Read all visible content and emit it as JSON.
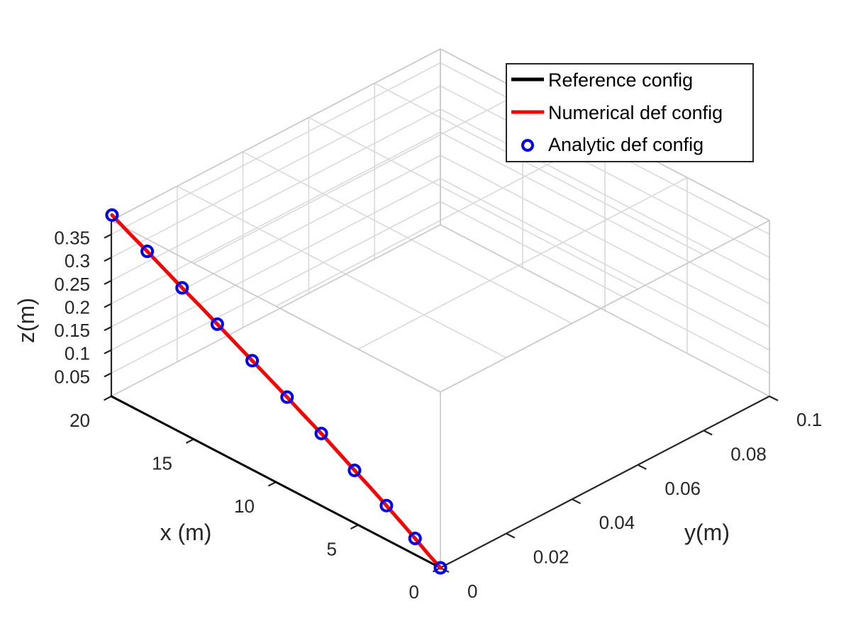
{
  "chart_data": {
    "type": "line",
    "projection": "3d",
    "title": "",
    "xlabel": "x (m)",
    "ylabel": "y(m)",
    "zlabel": "z(m)",
    "xlim": [
      0,
      20
    ],
    "ylim": [
      0,
      0.1
    ],
    "zlim": [
      0,
      0.38
    ],
    "x_ticks": [
      0,
      5,
      10,
      15,
      20
    ],
    "x_tick_labels": [
      "0",
      "5",
      "10",
      "15",
      "20"
    ],
    "y_ticks": [
      0,
      0.02,
      0.04,
      0.06,
      0.08,
      0.1
    ],
    "y_tick_labels": [
      "0",
      "0.02",
      "0.04",
      "0.06",
      "0.08",
      "0.1"
    ],
    "z_ticks": [
      0.05,
      0.1,
      0.15,
      0.2,
      0.25,
      0.3,
      0.35
    ],
    "z_tick_labels": [
      "0.05",
      "0.1",
      "0.15",
      "0.2",
      "0.25",
      "0.3",
      "0.35"
    ],
    "grid": true,
    "legend": "top-right",
    "series": [
      {
        "name": "Reference config",
        "color": "#000000",
        "style": "line",
        "x": [
          0,
          20
        ],
        "y": [
          0,
          0
        ],
        "z": [
          0,
          0
        ]
      },
      {
        "name": "Numerical def config",
        "color": "#ff0000",
        "style": "line",
        "x": [
          0,
          1,
          2,
          3,
          4,
          5,
          6,
          7,
          8,
          9,
          10,
          11,
          12,
          13,
          14,
          15,
          16,
          17,
          18,
          19,
          20
        ],
        "y": [
          0,
          0.0012,
          0.0023,
          0.0031,
          0.0036,
          0.0038,
          0.0039,
          0.0039,
          0.0038,
          0.0036,
          0.0034,
          0.0031,
          0.0028,
          0.0025,
          0.0022,
          0.0019,
          0.0015,
          0.0012,
          0.0009,
          0.0005,
          0.0002
        ],
        "z": [
          0,
          0.0075,
          0.018,
          0.031,
          0.047,
          0.066,
          0.085,
          0.106,
          0.128,
          0.149,
          0.171,
          0.193,
          0.215,
          0.237,
          0.259,
          0.281,
          0.303,
          0.325,
          0.347,
          0.369,
          0.391
        ]
      },
      {
        "name": "Analytic def config",
        "color": "#0000ff",
        "style": "markers",
        "x": [
          0,
          2,
          4,
          6,
          8,
          10,
          12,
          14,
          16,
          18,
          20
        ],
        "y": [
          0,
          0.0023,
          0.0036,
          0.0039,
          0.0038,
          0.0034,
          0.0028,
          0.0022,
          0.0015,
          0.0009,
          0.0002
        ],
        "z": [
          0,
          0.018,
          0.047,
          0.085,
          0.128,
          0.171,
          0.215,
          0.259,
          0.303,
          0.347,
          0.391
        ]
      }
    ]
  }
}
